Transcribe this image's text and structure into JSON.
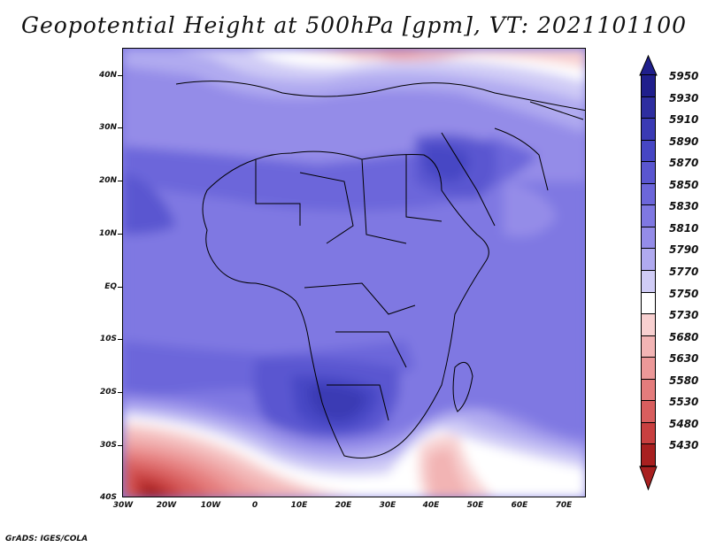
{
  "title": "Geopotential Height at 500hPa [gpm], VT: 2021101100",
  "footer": "GrADS: IGES/COLA",
  "map": {
    "lat_labels": [
      "40N",
      "30N",
      "20N",
      "10N",
      "EQ",
      "10S",
      "20S",
      "30S",
      "40S"
    ],
    "lon_labels": [
      "30W",
      "20W",
      "10W",
      "0",
      "10E",
      "20E",
      "30E",
      "40E",
      "50E",
      "60E",
      "70E"
    ],
    "lat_range": [
      -40,
      45
    ],
    "lon_range": [
      -30,
      75
    ]
  },
  "colorbar": {
    "levels": [
      "5950",
      "5930",
      "5910",
      "5890",
      "5870",
      "5850",
      "5830",
      "5810",
      "5790",
      "5770",
      "5750",
      "5730",
      "5680",
      "5630",
      "5580",
      "5530",
      "5480",
      "5430"
    ],
    "colors": [
      "#201f8c",
      "#2e2ea0",
      "#3a3ab4",
      "#4646c4",
      "#5a56d0",
      "#6c66da",
      "#7f78e2",
      "#948ce8",
      "#b0aaf0",
      "#d0ccf6",
      "#ffffff",
      "#f8d0d0",
      "#f2b4b4",
      "#ec9898",
      "#e47c7c",
      "#d85e5e",
      "#c84040",
      "#a82020"
    ]
  }
}
